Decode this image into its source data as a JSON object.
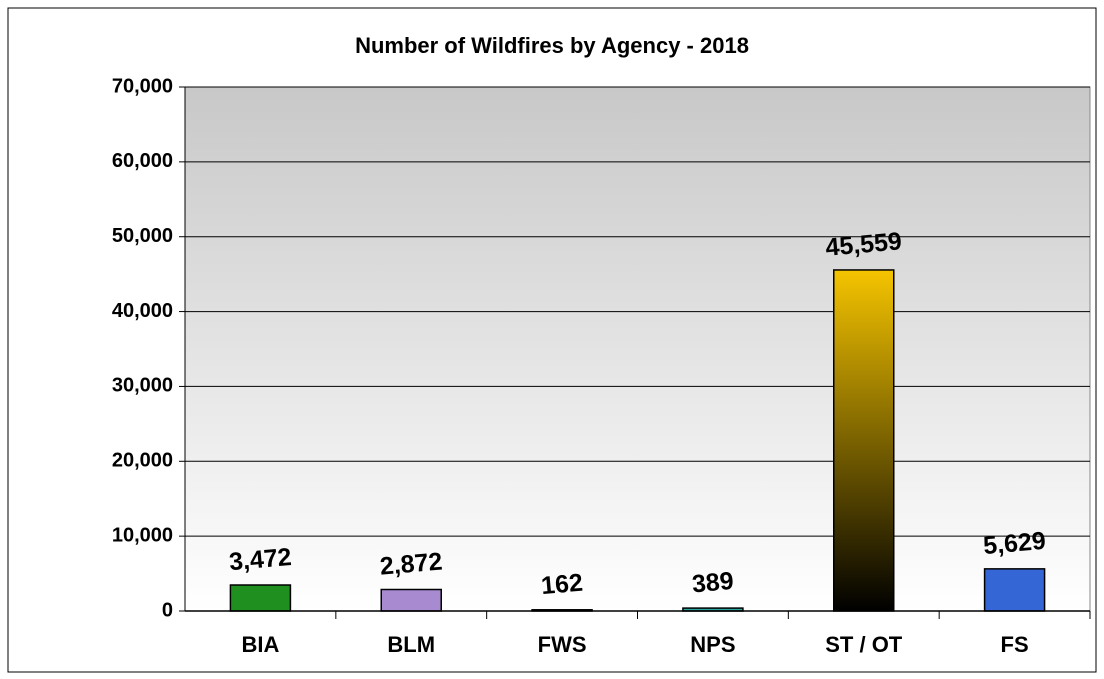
{
  "chart_data": {
    "type": "bar",
    "title": "Number of Wildfires by Agency - 2018",
    "categories": [
      "BIA",
      "BLM",
      "FWS",
      "NPS",
      "ST / OT",
      "FS"
    ],
    "values": [
      3472,
      2872,
      162,
      389,
      45559,
      5629
    ],
    "value_labels": [
      "3,472",
      "2,872",
      "162",
      "389",
      "45,559",
      "5,629"
    ],
    "colors": [
      "#1f8f1f",
      "#a88ad0",
      "#3a3a3a",
      "#2aa5a0",
      "#f5c400",
      "#3566d6"
    ],
    "ylim": [
      0,
      70000
    ],
    "yticks": [
      0,
      {
        "value": 10000,
        "label": "10,000"
      },
      {
        "value": 20000,
        "label": "20,000"
      },
      {
        "value": 30000,
        "label": "30,000"
      },
      {
        "value": 40000,
        "label": "40,000"
      },
      {
        "value": 50000,
        "label": "50,000"
      },
      {
        "value": 60000,
        "label": "60,000"
      },
      {
        "value": 70000,
        "label": "70,000"
      }
    ],
    "grid": true
  }
}
